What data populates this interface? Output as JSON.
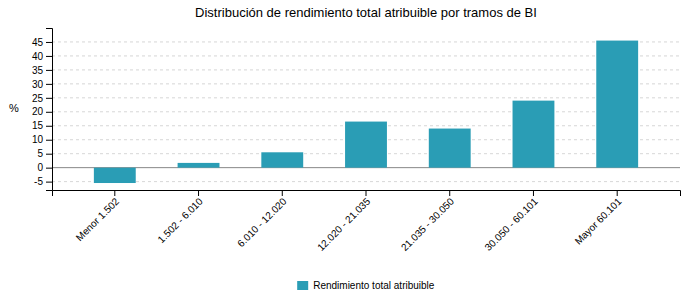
{
  "chart_data": {
    "type": "bar",
    "title": "Distribución de rendimiento total atribuible por tramos de BI",
    "categories": [
      "Menor 1.502",
      "1.502 - 6.010",
      "6.010 - 12.020",
      "12.020 - 21.035",
      "21.035 - 30.050",
      "30.050 - 60.101",
      "Mayor 60.101"
    ],
    "series": [
      {
        "name": "Rendimiento total atribuible",
        "color": "#2A9DB5",
        "values": [
          -5.5,
          1.7,
          5.5,
          16.5,
          14.0,
          24.0,
          45.5
        ]
      }
    ],
    "ylabel": "%",
    "ylim": [
      -8,
      50
    ],
    "yticks": [
      -5,
      0,
      5,
      10,
      15,
      20,
      25,
      30,
      35,
      40,
      45
    ],
    "grid": true,
    "legend": "bottom"
  }
}
